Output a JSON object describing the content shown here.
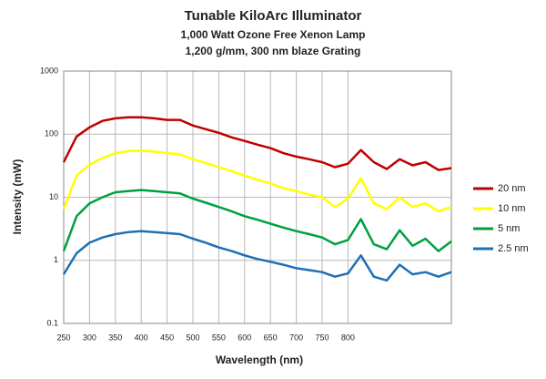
{
  "chart_data": {
    "type": "line",
    "title": "Tunable KiloArc Illuminator",
    "subtitle": [
      "1,000 Watt Ozone Free Xenon Lamp",
      "1,200 g/mm, 300 nm blaze Grating"
    ],
    "x_label": "Wavelength (nm)",
    "y_label": "Intensity (mW)",
    "log_y": true,
    "grid": true,
    "legend": "right",
    "xlim": [
      250,
      1000
    ],
    "ylim": [
      0.1,
      1000
    ],
    "xticks": [
      250,
      300,
      350,
      400,
      450,
      500,
      550,
      600,
      650,
      700,
      750,
      800
    ],
    "yticks": [
      0.1,
      1,
      10,
      100,
      1000
    ],
    "x": [
      250,
      275,
      300,
      325,
      350,
      375,
      400,
      425,
      450,
      475,
      500,
      525,
      550,
      575,
      600,
      625,
      650,
      675,
      700,
      725,
      750,
      775,
      800,
      825,
      850,
      875,
      900,
      925,
      950,
      975,
      1000
    ],
    "series": [
      {
        "name": "20 nm",
        "color": "#c00000",
        "values": [
          36,
          92,
          128,
          162,
          178,
          185,
          185,
          178,
          168,
          168,
          137,
          120,
          105,
          89,
          78,
          68,
          60,
          50,
          44,
          40,
          36,
          30,
          34,
          56,
          36,
          28,
          40,
          32,
          36,
          27,
          29
        ]
      },
      {
        "name": "10 nm",
        "color": "#ffff00",
        "values": [
          6.5,
          22,
          33,
          42,
          50,
          54,
          55,
          53,
          50,
          48,
          40,
          35,
          30,
          26,
          22,
          19,
          16.5,
          14,
          12.5,
          11,
          10,
          7,
          9.5,
          20,
          8,
          6.5,
          10,
          7,
          8,
          6,
          7
        ]
      },
      {
        "name": "5 nm",
        "color": "#00a040",
        "values": [
          1.4,
          5,
          8,
          10,
          12,
          12.5,
          13,
          12.5,
          12,
          11.5,
          9.5,
          8.2,
          7,
          6,
          5,
          4.4,
          3.8,
          3.3,
          2.9,
          2.6,
          2.3,
          1.8,
          2.1,
          4.5,
          1.8,
          1.5,
          3,
          1.7,
          2.2,
          1.4,
          2
        ]
      },
      {
        "name": "2.5 nm",
        "color": "#1f6fb5",
        "values": [
          0.6,
          1.3,
          1.9,
          2.3,
          2.6,
          2.8,
          2.9,
          2.8,
          2.7,
          2.6,
          2.2,
          1.9,
          1.6,
          1.4,
          1.2,
          1.05,
          0.95,
          0.85,
          0.75,
          0.7,
          0.65,
          0.55,
          0.62,
          1.2,
          0.55,
          0.48,
          0.85,
          0.6,
          0.65,
          0.55,
          0.65
        ]
      }
    ]
  }
}
